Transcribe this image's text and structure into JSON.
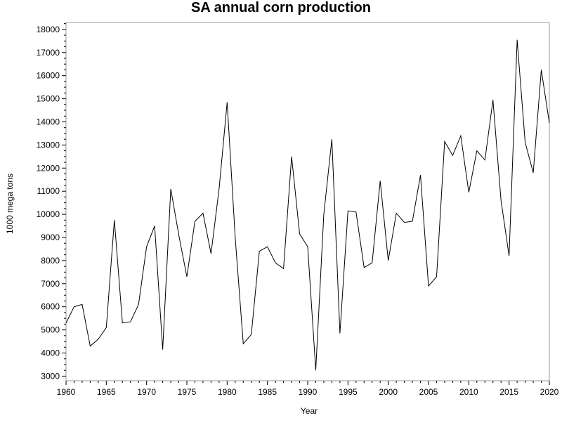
{
  "chart_data": {
    "type": "line",
    "title": "SA annual corn production",
    "xlabel": "Year",
    "ylabel": "1000 mega tons",
    "xlim": [
      1960,
      2020
    ],
    "ylim": [
      2800,
      18300
    ],
    "grid": false,
    "x_ticks": [
      1960,
      1965,
      1970,
      1975,
      1980,
      1985,
      1990,
      1995,
      2000,
      2005,
      2010,
      2015,
      2020
    ],
    "y_ticks": [
      3000,
      4000,
      5000,
      6000,
      7000,
      8000,
      9000,
      10000,
      11000,
      12000,
      13000,
      14000,
      15000,
      16000,
      17000,
      18000
    ],
    "series": [
      {
        "color": "#000000",
        "x": [
          1960,
          1961,
          1962,
          1963,
          1964,
          1965,
          1966,
          1967,
          1968,
          1969,
          1970,
          1971,
          1972,
          1973,
          1974,
          1975,
          1976,
          1977,
          1978,
          1979,
          1980,
          1981,
          1982,
          1983,
          1984,
          1985,
          1986,
          1987,
          1988,
          1989,
          1990,
          1991,
          1992,
          1993,
          1994,
          1995,
          1996,
          1997,
          1998,
          1999,
          2000,
          2001,
          2002,
          2003,
          2004,
          2005,
          2006,
          2007,
          2008,
          2009,
          2010,
          2011,
          2012,
          2013,
          2014,
          2015,
          2016,
          2017,
          2018,
          2019,
          2020
        ],
        "values": [
          5300,
          6000,
          6100,
          4300,
          4600,
          5100,
          9750,
          5300,
          5350,
          6100,
          8600,
          9500,
          4150,
          11100,
          9100,
          7300,
          9700,
          10050,
          8300,
          11100,
          14850,
          9000,
          4400,
          4800,
          8400,
          8600,
          7900,
          7650,
          12500,
          9150,
          8600,
          3250,
          10000,
          13250,
          4850,
          10150,
          10100,
          7700,
          7900,
          11450,
          8000,
          10050,
          9650,
          9700,
          11700,
          6900,
          7300,
          13150,
          12550,
          13400,
          10950,
          12750,
          12350,
          14950,
          10600,
          8200,
          17550,
          13100,
          11800,
          16250,
          13950
        ]
      }
    ]
  }
}
